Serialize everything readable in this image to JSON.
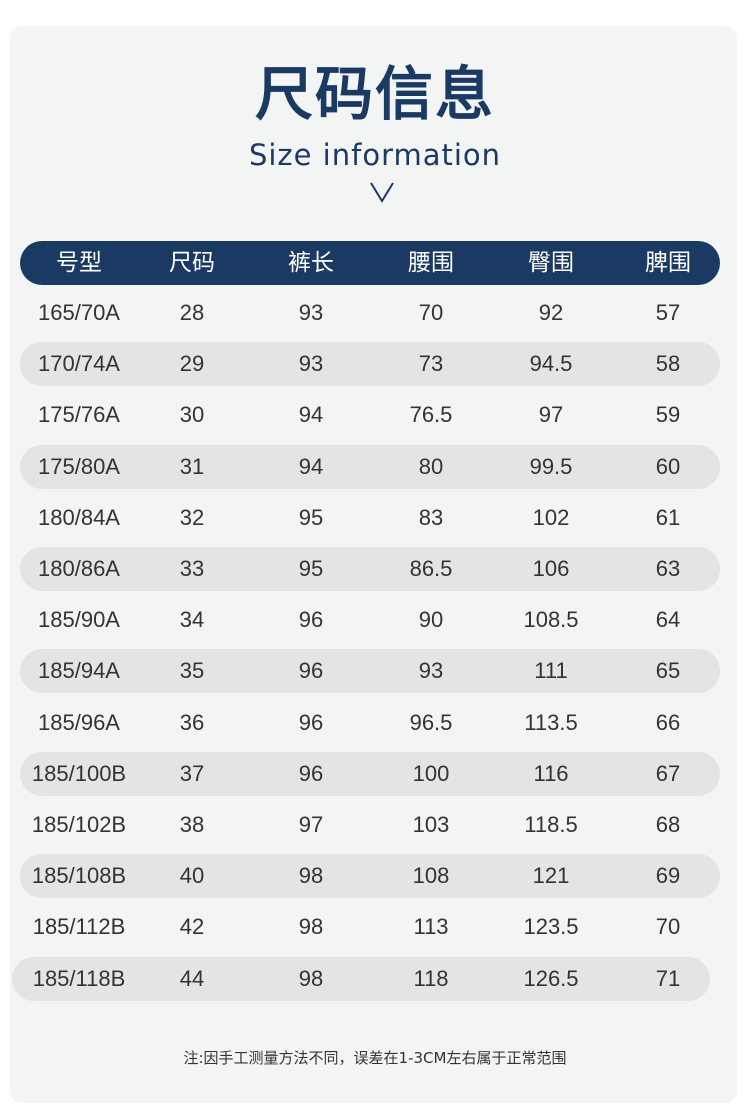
{
  "title": "尺码信息",
  "subtitle": "Size information",
  "headers": [
    "号型",
    "尺码",
    "裤长",
    "腰围",
    "臀围",
    "脾围"
  ],
  "rows": [
    [
      "165/70A",
      "28",
      "93",
      "70",
      "92",
      "57"
    ],
    [
      "170/74A",
      "29",
      "93",
      "73",
      "94.5",
      "58"
    ],
    [
      "175/76A",
      "30",
      "94",
      "76.5",
      "97",
      "59"
    ],
    [
      "175/80A",
      "31",
      "94",
      "80",
      "99.5",
      "60"
    ],
    [
      "180/84A",
      "32",
      "95",
      "83",
      "102",
      "61"
    ],
    [
      "180/86A",
      "33",
      "95",
      "86.5",
      "106",
      "63"
    ],
    [
      "185/90A",
      "34",
      "96",
      "90",
      "108.5",
      "64"
    ],
    [
      "185/94A",
      "35",
      "96",
      "93",
      "111",
      "65"
    ],
    [
      "185/96A",
      "36",
      "96",
      "96.5",
      "113.5",
      "66"
    ],
    [
      "185/100B",
      "37",
      "96",
      "100",
      "116",
      "67"
    ],
    [
      "185/102B",
      "38",
      "97",
      "103",
      "118.5",
      "68"
    ],
    [
      "185/108B",
      "40",
      "98",
      "108",
      "121",
      "69"
    ],
    [
      "185/112B",
      "42",
      "98",
      "113",
      "123.5",
      "70"
    ],
    [
      "185/118B",
      "44",
      "98",
      "118",
      "126.5",
      "71"
    ]
  ],
  "note": "注:因手工测量方法不同，误差在1-3CM左右属于正常范围",
  "colors": {
    "accent": "#1b3a63",
    "card_background": "#f3f4f4",
    "row_shade": "#e2e4e6",
    "text": "#333333"
  },
  "icons": {
    "chevron": "chevron-down-icon"
  }
}
